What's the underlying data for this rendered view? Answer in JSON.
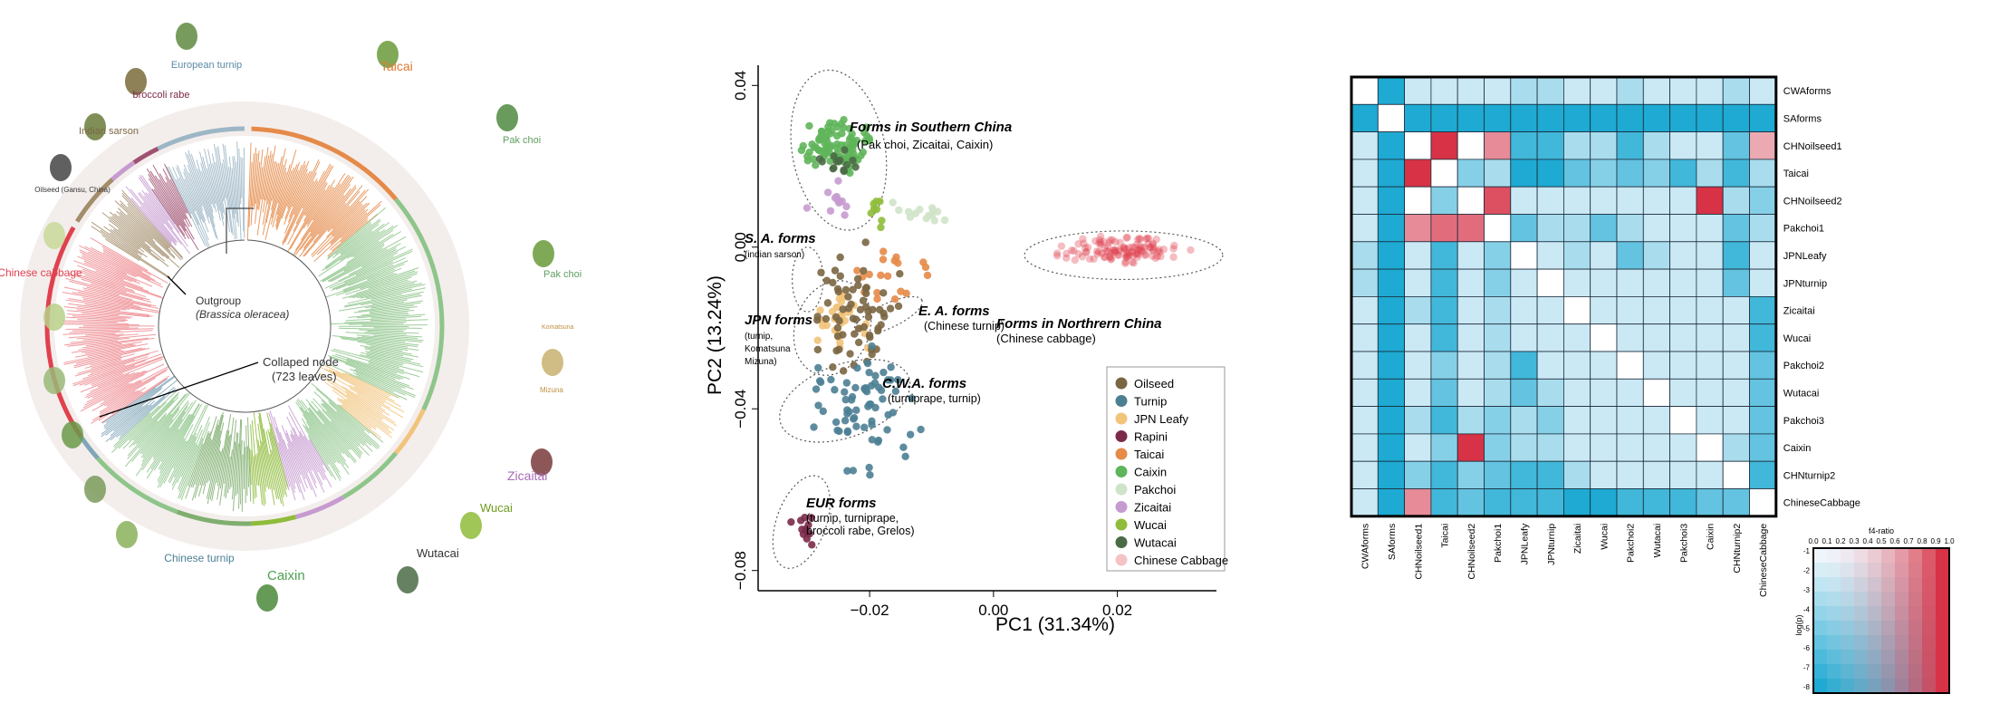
{
  "colors": {
    "Oilseed": "#7a6642",
    "Turnip": "#4d7f93",
    "JPN Leafy": "#f2c37a",
    "Rapini": "#7b2a4a",
    "Taicai": "#e58a48",
    "Caixin": "#5fb55a",
    "Pakchoi": "#cfe3c8",
    "Zicaitai": "#c69bd0",
    "Wucai": "#8fbc3a",
    "Wutacai": "#4a6b45",
    "Chinese Cabbage": "#f4c3c3",
    "chinese_cabbage_dot": "#e0414f"
  },
  "tree": {
    "labels": {
      "taicai": "Taicai",
      "european_turnip": "European turnip",
      "broccoli_rabe": "broccoli rabe",
      "indian_sarson": "Indian sarson",
      "oilseed": "Oilseed (Gansu, China)",
      "pak_choi_1": "Pak choi",
      "pak_choi_2": "Pak choi",
      "komatsuna": "Komatsuna",
      "mizuna": "Mizuna",
      "chinese_cabbage": "Chinese cabbage",
      "outgroup": "Outgroup",
      "outgroup_species": "(Brassica oleracea)",
      "collapsed_node": "Collaped node",
      "collapsed_leaves": "(723 leaves)",
      "zicaitai": "Zicaitai",
      "wucai": "Wucai",
      "wutacai": "Wutacai",
      "caixin": "Caixin",
      "chinese_turnip": "Chinese turnip"
    }
  },
  "chart_data": [
    {
      "type": "scatter",
      "title": "",
      "xlabel": "PC1 (31.34%)",
      "ylabel": "PC2 (13.24%)",
      "xlim": [
        -0.038,
        0.036
      ],
      "ylim": [
        -0.085,
        0.045
      ],
      "xticks": [
        -0.02,
        0.0,
        0.02
      ],
      "xtick_labels": [
        "−0.02",
        "0.00",
        "0.02"
      ],
      "yticks": [
        0.04,
        0.0,
        -0.04,
        -0.08
      ],
      "ytick_labels": [
        "0.04",
        "0.00",
        "−0.04",
        "−0.08"
      ],
      "legend_position": "bottom-right",
      "legend": [
        "Oilseed",
        "Turnip",
        "JPN Leafy",
        "Rapini",
        "Taicai",
        "Caixin",
        "Pakchoi",
        "Zicaitai",
        "Wucai",
        "Wutacai",
        "Chinese Cabbage"
      ],
      "annotations": [
        {
          "title": "Forms in Southern China",
          "subtitle": "(Pak choi, Zicaitai, Caixin)"
        },
        {
          "title": "S. A. forms",
          "subtitle": "(indian sarson)"
        },
        {
          "title": "JPN forms",
          "subtitle": "(turnip, Komatsuna Mizuna)"
        },
        {
          "title": "E. A. forms",
          "subtitle": "(Chinese turnip)"
        },
        {
          "title": "C.W.A. forms",
          "subtitle": "(turniprape, turnip)"
        },
        {
          "title": "EUR forms",
          "subtitle": "(turnip, turniprape, broccoli rabe, Grelos)"
        },
        {
          "title": "Forms in Northrern China",
          "subtitle": "(Chinese cabbage)"
        }
      ],
      "groups": [
        {
          "name": "Chinese Cabbage",
          "center": [
            0.021,
            -0.001
          ],
          "spread": [
            0.008,
            0.003
          ],
          "n": 120
        },
        {
          "name": "Caixin",
          "center": [
            -0.025,
            0.025
          ],
          "spread": [
            0.005,
            0.006
          ],
          "n": 90
        },
        {
          "name": "Wutacai",
          "center": [
            -0.026,
            0.021
          ],
          "spread": [
            0.003,
            0.003
          ],
          "n": 14
        },
        {
          "name": "Zicaitai",
          "center": [
            -0.026,
            0.012
          ],
          "spread": [
            0.003,
            0.003
          ],
          "n": 12
        },
        {
          "name": "Pakchoi",
          "center": [
            -0.012,
            0.009
          ],
          "spread": [
            0.005,
            0.003
          ],
          "n": 14
        },
        {
          "name": "Wucai",
          "center": [
            -0.018,
            0.009
          ],
          "spread": [
            0.003,
            0.003
          ],
          "n": 8
        },
        {
          "name": "Taicai",
          "center": [
            -0.017,
            -0.007
          ],
          "spread": [
            0.005,
            0.006
          ],
          "n": 20
        },
        {
          "name": "JPN Leafy",
          "center": [
            -0.025,
            -0.017
          ],
          "spread": [
            0.004,
            0.006
          ],
          "n": 30
        },
        {
          "name": "Oilseed",
          "center": [
            -0.022,
            -0.018
          ],
          "spread": [
            0.006,
            0.014
          ],
          "n": 65
        },
        {
          "name": "Turnip",
          "center": [
            -0.021,
            -0.04
          ],
          "spread": [
            0.007,
            0.013
          ],
          "n": 70
        },
        {
          "name": "Rapini",
          "center": [
            -0.03,
            -0.07
          ],
          "spread": [
            0.002,
            0.004
          ],
          "n": 12
        }
      ]
    },
    {
      "type": "heatmap",
      "title": "",
      "rows": [
        "CWAforms",
        "SAforms",
        "CHNoilseed1",
        "Taicai",
        "CHNoilseed2",
        "Pakchoi1",
        "JPNLeafy",
        "JPNturnip",
        "Zicaitai",
        "Wucai",
        "Pakchoi2",
        "Wutacai",
        "Pakchoi3",
        "Caixin",
        "CHNturnip2",
        "ChineseCabbage"
      ],
      "columns": [
        "CWAforms",
        "SAforms",
        "CHNoilseed1",
        "Taicai",
        "CHNoilseed2",
        "Pakchoi1",
        "JPNLeafy",
        "JPNturnip",
        "Zicaitai",
        "Wucai",
        "Pakchoi2",
        "Wutacai",
        "Pakchoi3",
        "Caixin",
        "CHNturnip2",
        "ChineseCabbage"
      ],
      "matrix": [
        [
          0,
          6,
          1,
          1,
          1,
          1,
          2,
          2,
          1,
          1,
          2,
          1,
          1,
          1,
          2,
          1
        ],
        [
          6,
          0,
          6,
          6,
          6,
          6,
          6,
          6,
          6,
          6,
          6,
          6,
          6,
          6,
          6,
          6
        ],
        [
          1,
          6,
          0,
          -6,
          0,
          -3,
          5,
          5,
          2,
          2,
          5,
          2,
          1,
          1,
          4,
          -2
        ],
        [
          1,
          6,
          -6,
          0,
          3,
          2,
          6,
          6,
          4,
          3,
          4,
          3,
          5,
          2,
          5,
          2
        ],
        [
          1,
          6,
          0,
          3,
          0,
          -5,
          1,
          1,
          1,
          1,
          1,
          1,
          1,
          -6,
          2,
          3
        ],
        [
          1,
          6,
          -3,
          -4,
          -4,
          0,
          4,
          2,
          2,
          4,
          2,
          1,
          1,
          1,
          4,
          2
        ],
        [
          2,
          6,
          1,
          5,
          1,
          3,
          0,
          1,
          2,
          1,
          4,
          2,
          1,
          1,
          5,
          1
        ],
        [
          2,
          6,
          1,
          5,
          1,
          3,
          1,
          0,
          1,
          1,
          1,
          1,
          1,
          1,
          4,
          1
        ],
        [
          1,
          6,
          2,
          5,
          1,
          2,
          1,
          1,
          0,
          1,
          1,
          1,
          1,
          1,
          1,
          5
        ],
        [
          1,
          6,
          1,
          5,
          1,
          2,
          1,
          1,
          1,
          0,
          1,
          1,
          1,
          1,
          1,
          5
        ],
        [
          1,
          6,
          1,
          3,
          1,
          2,
          5,
          1,
          1,
          1,
          0,
          1,
          1,
          1,
          1,
          4
        ],
        [
          1,
          6,
          1,
          4,
          1,
          2,
          4,
          2,
          1,
          1,
          1,
          0,
          1,
          1,
          1,
          4
        ],
        [
          1,
          6,
          2,
          5,
          2,
          3,
          2,
          3,
          1,
          1,
          1,
          1,
          0,
          1,
          1,
          4
        ],
        [
          1,
          6,
          1,
          3,
          -6,
          3,
          2,
          2,
          1,
          1,
          1,
          1,
          1,
          0,
          2,
          4
        ],
        [
          1,
          6,
          3,
          5,
          3,
          4,
          5,
          5,
          2,
          1,
          1,
          1,
          1,
          1,
          0,
          5
        ],
        [
          1,
          6,
          -3,
          5,
          4,
          5,
          5,
          5,
          6,
          6,
          5,
          5,
          5,
          4,
          4,
          0
        ]
      ],
      "colorbar": {
        "x_title": "f4-ratio",
        "x_ticks": [
          "0.0",
          "0.1",
          "0.2",
          "0.3",
          "0.4",
          "0.5",
          "0.6",
          "0.7",
          "0.8",
          "0.9",
          "1.0"
        ],
        "y_title": "log(p)",
        "y_ticks": [
          "-1",
          "-2",
          "-3",
          "-4",
          "-5",
          "-6",
          "-7",
          "-8"
        ]
      }
    }
  ]
}
